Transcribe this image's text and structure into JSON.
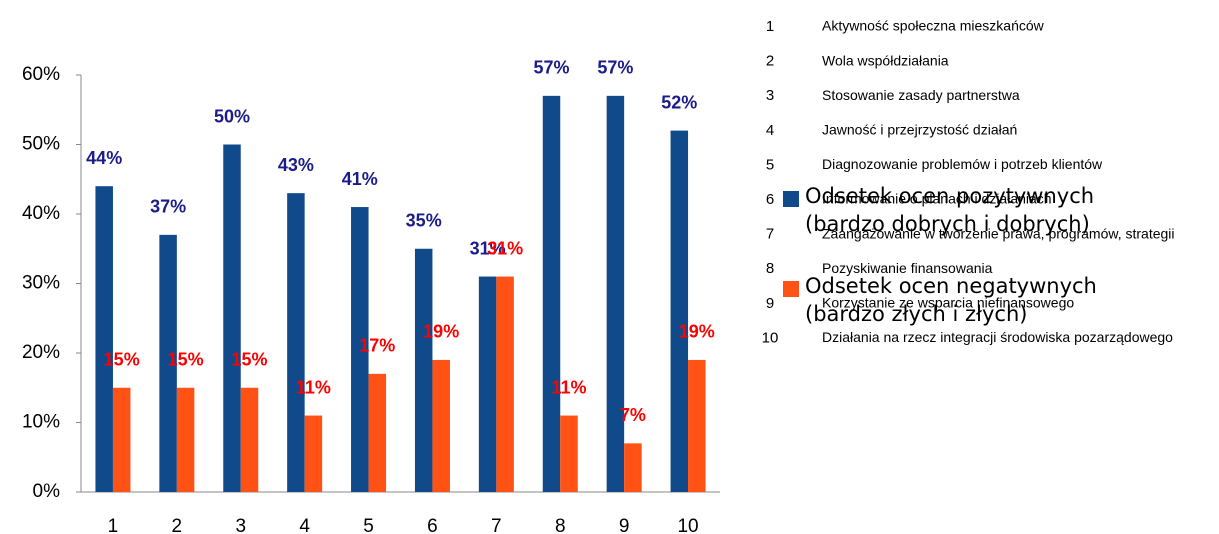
{
  "chart_data": {
    "type": "bar",
    "categories": [
      "1",
      "2",
      "3",
      "4",
      "5",
      "6",
      "7",
      "8",
      "9",
      "10"
    ],
    "series": [
      {
        "name": "Odsetek ocen pozytywnych (bardzo dobrych i dobrych)",
        "color": "#114a8b",
        "label_color": "#1b1b8a",
        "values": [
          44,
          37,
          50,
          43,
          41,
          35,
          31,
          57,
          57,
          52
        ],
        "value_labels": [
          "44%",
          "37%",
          "50%",
          "43%",
          "41%",
          "35%",
          "31%",
          "57%",
          "57%",
          "52%"
        ]
      },
      {
        "name": "Odsetek ocen negatywnych (bardzo złych i złych)",
        "color": "#ff5214",
        "label_color": "#ff0000",
        "values": [
          15,
          15,
          15,
          11,
          17,
          19,
          31,
          11,
          7,
          19
        ],
        "value_labels": [
          "15%",
          "15%",
          "15%",
          "11%",
          "17%",
          "19%",
          "31%",
          "11%",
          "7%",
          "19%"
        ]
      }
    ],
    "ylim": [
      0,
      60
    ],
    "yticks": [
      {
        "value": 0,
        "label": "0%"
      },
      {
        "value": 10,
        "label": "10%"
      },
      {
        "value": 20,
        "label": "20%"
      },
      {
        "value": 30,
        "label": "30%"
      },
      {
        "value": 40,
        "label": "40%"
      },
      {
        "value": 50,
        "label": "50%"
      },
      {
        "value": 60,
        "label": "60%"
      }
    ],
    "grid": false,
    "descriptions": [
      "Aktywność społeczna mieszkańców",
      "Wola współdziałania",
      "Stosowanie zasady partnerstwa",
      "Jawność i przejrzystość działań",
      "Diagnozowanie problemów i potrzeb klientów",
      "Informowanie o planach i działaniach",
      "Zaangażowanie w tworzenie prawa, programów, strategii",
      "Pozyskiwanie finansowania",
      "Korzystanie ze wsparcia niefinansowego",
      "Działania na rzecz integracji środowiska pozarządowego"
    ]
  }
}
